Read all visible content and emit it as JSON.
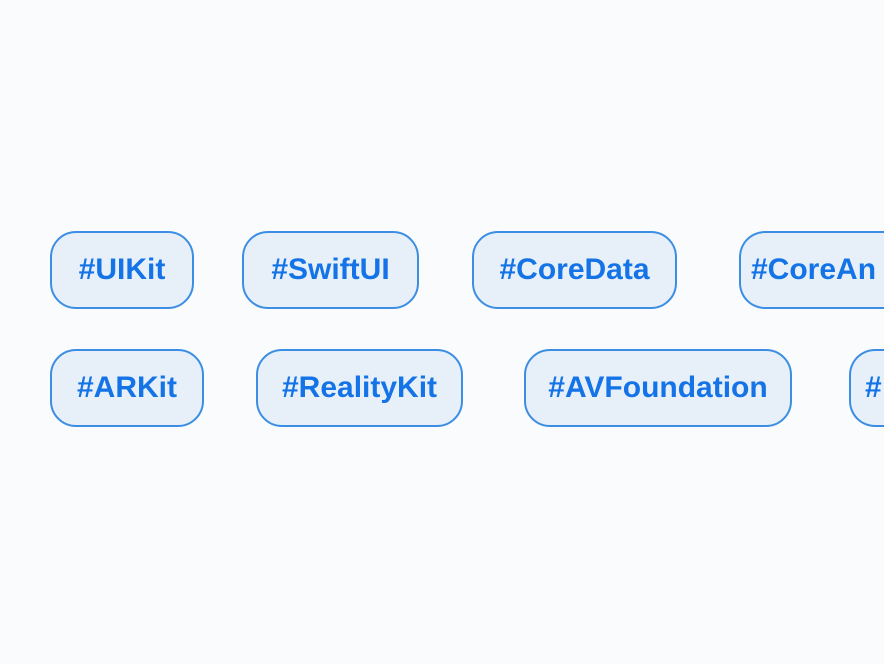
{
  "tag_rows": [
    {
      "tags": [
        {
          "label": "#UIKit"
        },
        {
          "label": "#SwiftUI"
        },
        {
          "label": "#CoreData"
        },
        {
          "label": "#CoreAn"
        }
      ]
    },
    {
      "tags": [
        {
          "label": "#ARKit"
        },
        {
          "label": "#RealityKit"
        },
        {
          "label": "#AVFoundation"
        },
        {
          "label": "#"
        }
      ]
    }
  ],
  "colors": {
    "background": "#f9fbfd",
    "tag_fill": "#e7f0f9",
    "tag_border": "#3b8ee3",
    "tag_text": "#1473e6"
  }
}
